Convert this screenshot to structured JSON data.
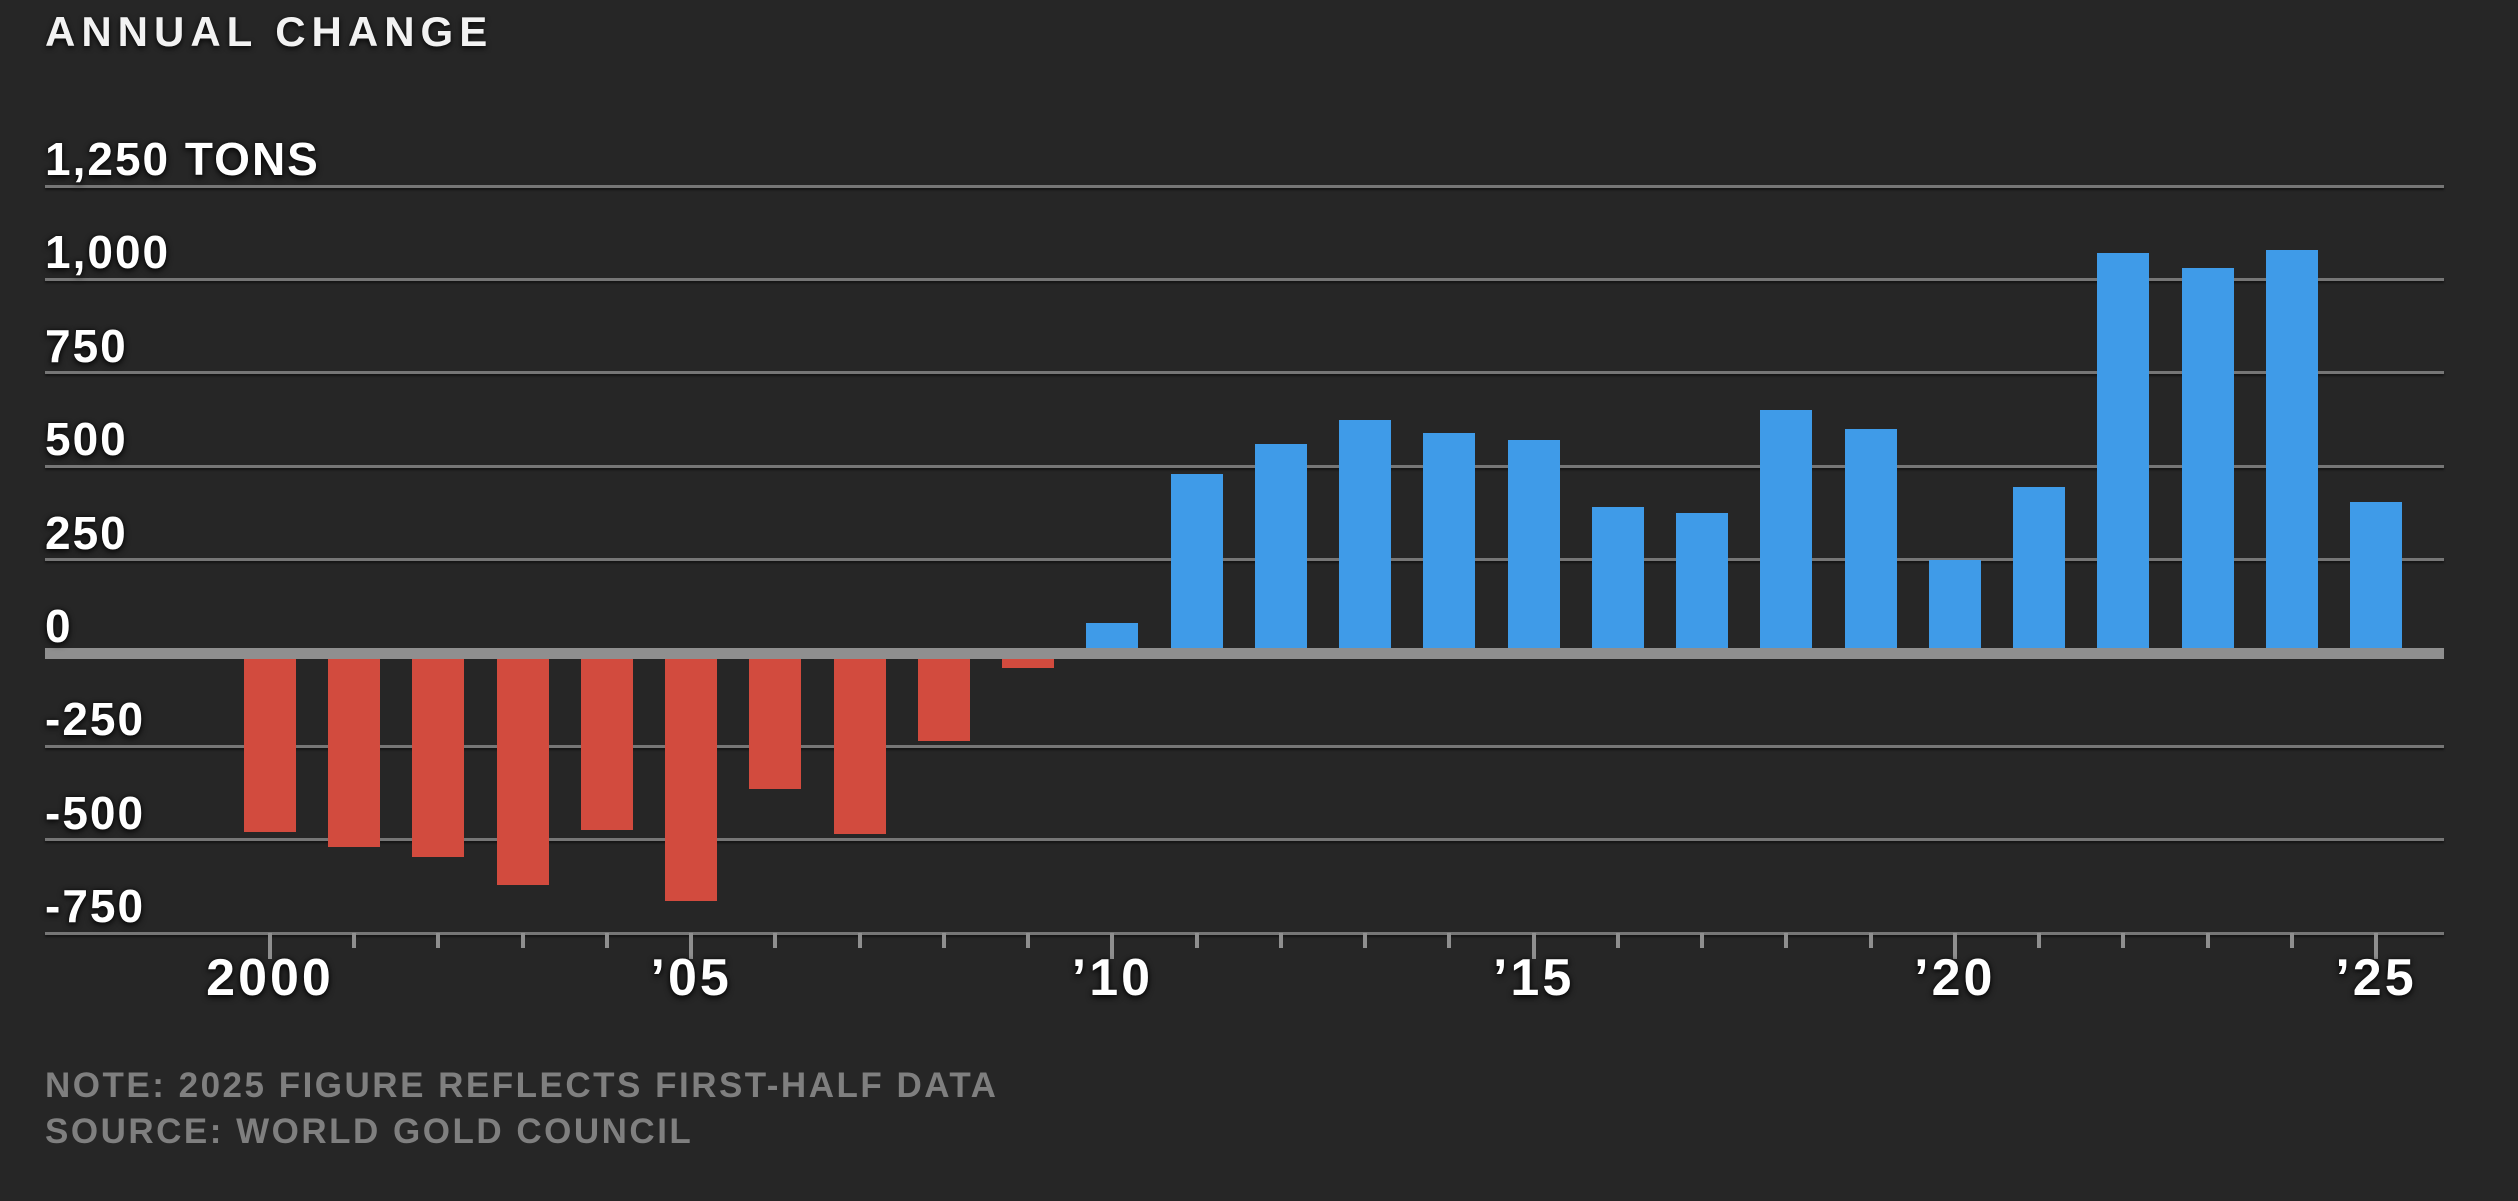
{
  "title": "ANNUAL CHANGE",
  "footer": {
    "note": "NOTE: 2025 FIGURE REFLECTS FIRST-HALF DATA",
    "source": "SOURCE: WORLD GOLD COUNCIL"
  },
  "colors": {
    "background": "#262626",
    "positive_bar": "#3f9be8",
    "negative_bar": "#d24b3e",
    "gridline": "#767676",
    "zero_line": "#8f8f8f",
    "axis_text": "#ffffff",
    "footer_text": "#7f7f7f"
  },
  "chart_data": {
    "type": "bar",
    "title": "ANNUAL CHANGE",
    "unit": "TONS",
    "xlabel": "",
    "ylabel": "ANNUAL CHANGE, TONS",
    "ylim": [
      -750,
      1250
    ],
    "grid": true,
    "legend": false,
    "categories": [
      2000,
      2001,
      2002,
      2003,
      2004,
      2005,
      2006,
      2007,
      2008,
      2009,
      2010,
      2011,
      2012,
      2013,
      2014,
      2015,
      2016,
      2017,
      2018,
      2019,
      2020,
      2021,
      2022,
      2023,
      2024,
      2025
    ],
    "values": [
      -480,
      -520,
      -545,
      -620,
      -475,
      -665,
      -365,
      -485,
      -235,
      -40,
      80,
      480,
      560,
      625,
      590,
      570,
      390,
      375,
      650,
      600,
      250,
      445,
      1070,
      1030,
      1080,
      405
    ],
    "yticks": [
      {
        "value": 1250,
        "label": "1,250 TONS"
      },
      {
        "value": 1000,
        "label": "1,000"
      },
      {
        "value": 750,
        "label": "750"
      },
      {
        "value": 500,
        "label": "500"
      },
      {
        "value": 250,
        "label": "250"
      },
      {
        "value": 0,
        "label": "0"
      },
      {
        "value": -250,
        "label": "-250"
      },
      {
        "value": -500,
        "label": "-500"
      },
      {
        "value": -750,
        "label": "-750"
      }
    ],
    "xticks": [
      {
        "year": 2000,
        "label": "2000"
      },
      {
        "year": 2005,
        "label": "’05"
      },
      {
        "year": 2010,
        "label": "’10"
      },
      {
        "year": 2015,
        "label": "’15"
      },
      {
        "year": 2020,
        "label": "’20"
      },
      {
        "year": 2025,
        "label": "’25"
      }
    ]
  }
}
